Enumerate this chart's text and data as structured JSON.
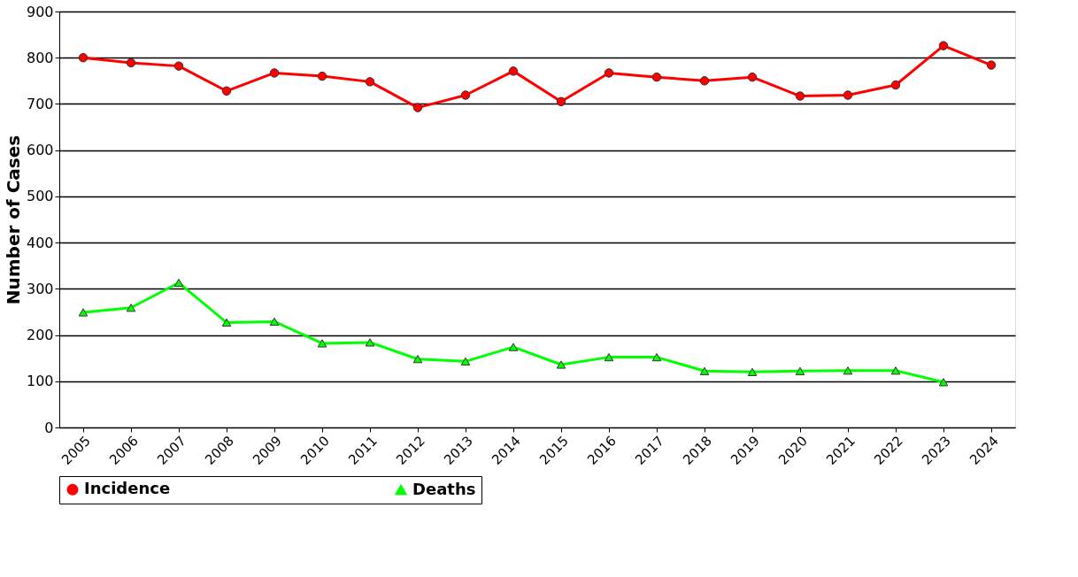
{
  "chart_data": {
    "type": "line",
    "ylabel": "Number of Cases",
    "categories": [
      "2005",
      "2006",
      "2007",
      "2008",
      "2009",
      "2010",
      "2011",
      "2012",
      "2013",
      "2014",
      "2015",
      "2016",
      "2017",
      "2018",
      "2019",
      "2020",
      "2021",
      "2022",
      "2023",
      "2024"
    ],
    "series": [
      {
        "name": "Incidence",
        "color": "#ff0000",
        "marker": "circle",
        "values": [
          800,
          789,
          782,
          728,
          767,
          760,
          748,
          692,
          719,
          771,
          705,
          767,
          758,
          750,
          758,
          717,
          719,
          741,
          826,
          784
        ]
      },
      {
        "name": "Deaths",
        "color": "#00ff00",
        "marker": "triangle",
        "values": [
          249,
          259,
          313,
          227,
          229,
          182,
          184,
          148,
          143,
          174,
          136,
          152,
          152,
          122,
          120,
          122,
          123,
          123,
          98,
          null
        ]
      }
    ],
    "ylim": [
      0,
      900
    ],
    "yticks": [
      0,
      100,
      200,
      300,
      400,
      500,
      600,
      700,
      800,
      900
    ],
    "grid": "y",
    "legend": "bottom",
    "line_style": "solid"
  }
}
